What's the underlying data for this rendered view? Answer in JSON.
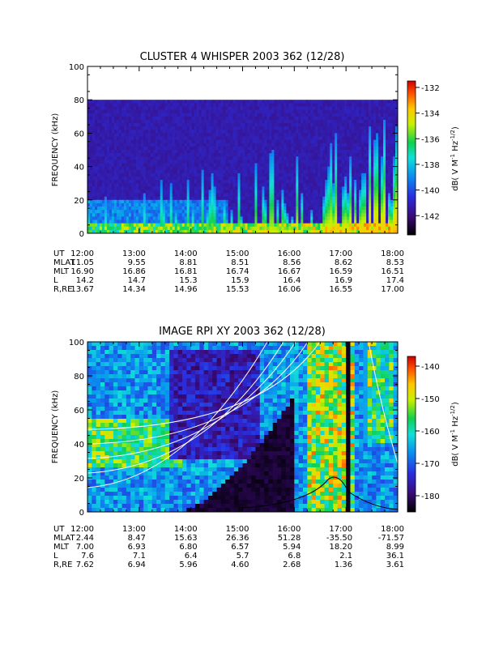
{
  "chart_data": [
    {
      "type": "heatmap",
      "title": "CLUSTER 4 WHISPER 2003 362 (12/28)",
      "ylabel": "FREQUENCY (kHz)",
      "xlim_hours": [
        12,
        18
      ],
      "ylim": [
        0,
        100
      ],
      "y_ticks": [
        0,
        20,
        40,
        60,
        80,
        100
      ],
      "x_tick_labels": [
        "12:00",
        "13:00",
        "14:00",
        "15:00",
        "16:00",
        "17:00",
        "18:00"
      ],
      "data_top_khz": 80,
      "colorbar": {
        "label": "dB( V M-1 Hz-1/2 )",
        "range": [
          -143.5,
          -131.5
        ],
        "ticks": [
          -132,
          -134,
          -136,
          -138,
          -140,
          -142
        ]
      },
      "ephemeris": [
        {
          "label": "UT",
          "values": [
            "12:00",
            "13:00",
            "14:00",
            "15:00",
            "16:00",
            "17:00",
            "18:00"
          ]
        },
        {
          "label": "MLAT",
          "values": [
            "11.05",
            "9.55",
            "8.81",
            "8.51",
            "8.56",
            "8.62",
            "8.53"
          ]
        },
        {
          "label": "MLT",
          "values": [
            "16.90",
            "16.86",
            "16.81",
            "16.74",
            "16.67",
            "16.59",
            "16.51"
          ]
        },
        {
          "label": "L",
          "values": [
            "14.2",
            "14.7",
            "15.3",
            "15.9",
            "16.4",
            "16.9",
            "17.4"
          ]
        },
        {
          "label": "R,RE",
          "values": [
            "13.67",
            "14.34",
            "14.96",
            "15.53",
            "16.06",
            "16.55",
            "17.00"
          ]
        }
      ]
    },
    {
      "type": "heatmap",
      "title": "IMAGE RPI XY 2003 362 (12/28)",
      "ylabel": "FREQUENCY (kHz)",
      "xlim_hours": [
        12,
        18
      ],
      "ylim": [
        0,
        100
      ],
      "y_ticks": [
        0,
        20,
        40,
        60,
        80,
        100
      ],
      "x_tick_labels": [
        "12:00",
        "13:00",
        "14:00",
        "15:00",
        "16:00",
        "17:00",
        "18:00"
      ],
      "colorbar": {
        "label": "dB( V M-1 Hz-1/2 )",
        "range": [
          -185,
          -137
        ],
        "ticks": [
          -140,
          -150,
          -160,
          -170,
          -180
        ]
      },
      "ephemeris": [
        {
          "label": "UT",
          "values": [
            "12:00",
            "13:00",
            "14:00",
            "15:00",
            "16:00",
            "17:00",
            "18:00"
          ]
        },
        {
          "label": "MLAT",
          "values": [
            "2.44",
            "8.47",
            "15.63",
            "26.36",
            "51.28",
            "-35.50",
            "-71.57"
          ]
        },
        {
          "label": "MLT",
          "values": [
            "7.00",
            "6.93",
            "6.80",
            "6.57",
            "5.94",
            "18.20",
            "8.99"
          ]
        },
        {
          "label": "L",
          "values": [
            "7.6",
            "7.1",
            "6.4",
            "5.7",
            "6.8",
            "2.1",
            "36.1"
          ]
        },
        {
          "label": "R,RE",
          "values": [
            "7.62",
            "6.94",
            "5.96",
            "4.60",
            "2.68",
            "1.36",
            "3.61"
          ]
        }
      ]
    }
  ]
}
